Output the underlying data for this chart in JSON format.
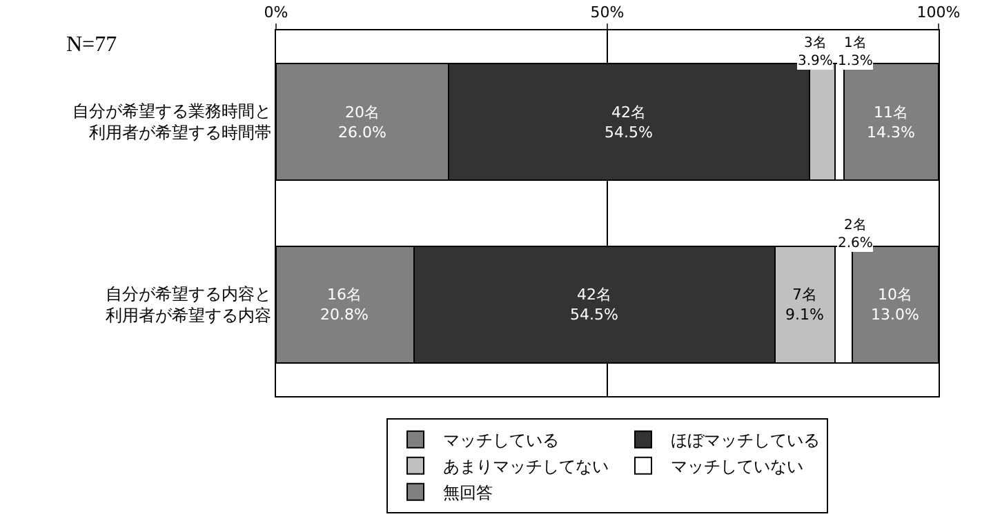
{
  "chart_data": {
    "type": "bar",
    "orientation": "horizontal",
    "stacked": true,
    "categories": [
      "自分が希望する業務時間と利用者が希望する時間帯",
      "自分が希望する内容と利用者が希望する内容"
    ],
    "series": [
      {
        "name": "マッチしている",
        "color": "#808080",
        "values": [
          26.0,
          20.8
        ],
        "value_labels": [
          "20名\n26.0%",
          "16名\n20.8%"
        ]
      },
      {
        "name": "ほぼマッチしている",
        "color": "#333333",
        "values": [
          54.5,
          54.5
        ],
        "value_labels": [
          "42名\n54.5%",
          "42名\n54.5%"
        ]
      },
      {
        "name": "あまりマッチしてない",
        "color": "#c0c0c0",
        "values": [
          3.9,
          9.1
        ],
        "value_labels": [
          "3名\n3.9%",
          "7名\n9.1%"
        ]
      },
      {
        "name": "マッチしていない",
        "color": "#ffffff",
        "values": [
          1.3,
          2.6
        ],
        "value_labels": [
          "1名\n1.3%",
          "2名\n2.6%"
        ]
      },
      {
        "name": "無回答",
        "color": "#808080",
        "values": [
          14.3,
          13.0
        ],
        "value_labels": [
          "11名\n14.3%",
          "10名\n13.0%"
        ]
      }
    ],
    "xlim": [
      0,
      100
    ],
    "xticks": [
      {
        "value": 0,
        "label": "0%"
      },
      {
        "value": 50,
        "label": "50%"
      },
      {
        "value": 100,
        "label": "100%"
      }
    ],
    "grid": "x",
    "legend": "bottom",
    "annotations": [
      "N=77"
    ]
  }
}
